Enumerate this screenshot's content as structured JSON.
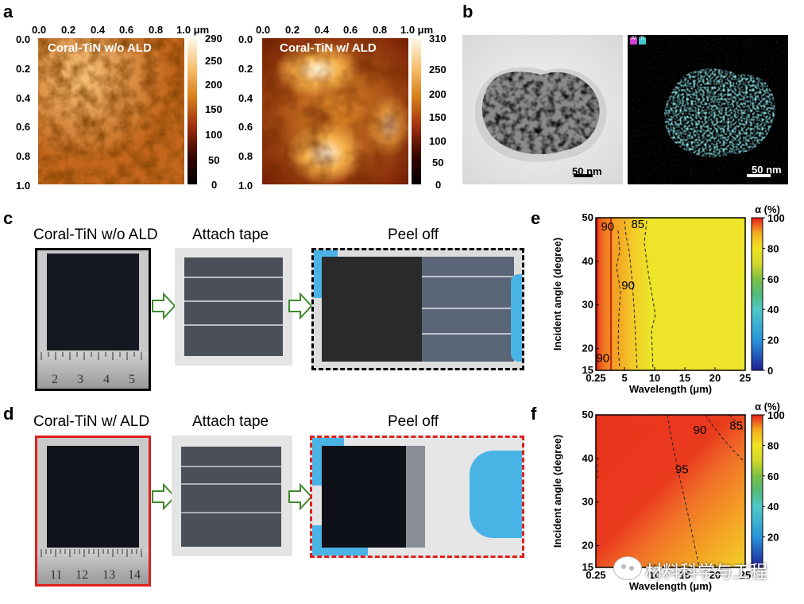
{
  "panels": {
    "a": {
      "label": "a",
      "left": {
        "title": "Coral-TiN w/o ALD",
        "x_ticks": [
          "0.0",
          "0.2",
          "0.4",
          "0.6",
          "0.8",
          "1.0 μm"
        ],
        "y_ticks": [
          "0.0",
          "0.2",
          "0.4",
          "0.6",
          "0.8",
          "1.0"
        ],
        "cbar_ticks": [
          "290",
          "250",
          "200",
          "150",
          "100",
          "50",
          "0"
        ]
      },
      "right": {
        "title": "Coral-TiN w/ ALD",
        "x_ticks": [
          "0.0",
          "0.2",
          "0.4",
          "0.6",
          "0.8",
          "1.0 μm"
        ],
        "y_ticks": [
          "0.0",
          "0.2",
          "0.4",
          "0.6",
          "0.8",
          "1.0"
        ],
        "cbar_ticks": [
          "310",
          "250",
          "200",
          "150",
          "100",
          "50",
          "0"
        ]
      }
    },
    "b": {
      "label": "b",
      "tem_scale": "50 nm",
      "eds_scale": "50 nm",
      "eds_legend": [
        "Al",
        "Ti"
      ],
      "eds_colors": {
        "Al": "#d040d0",
        "Ti": "#40c8d0"
      }
    },
    "c": {
      "label": "c",
      "titles": [
        "Coral-TiN w/o ALD",
        "Attach tape",
        "Peel off"
      ],
      "ruler_numbers": [
        "2",
        "3",
        "4",
        "5"
      ],
      "frame_color": "#000000"
    },
    "d": {
      "label": "d",
      "titles": [
        "Coral-TiN w/ ALD",
        "Attach tape",
        "Peel off"
      ],
      "ruler_numbers": [
        "11",
        "12",
        "13",
        "14"
      ],
      "frame_color": "#e0201c"
    },
    "e": {
      "label": "e"
    },
    "f": {
      "label": "f"
    }
  },
  "chart_data": [
    {
      "panel": "e",
      "type": "heatmap",
      "xlabel": "Wavelength (μm)",
      "ylabel": "Incident angle (degree)",
      "x_ticks": [
        "0.25",
        "5",
        "10",
        "15",
        "20",
        "25"
      ],
      "x_values": [
        0.25,
        5,
        10,
        15,
        20,
        25
      ],
      "y_ticks": [
        "15",
        "20",
        "30",
        "40",
        "50"
      ],
      "y_values": [
        15,
        20,
        30,
        40,
        50
      ],
      "xlim": [
        0.25,
        25
      ],
      "ylim": [
        15,
        50
      ],
      "colorbar_title": "α (%)",
      "colorbar_ticks": [
        "100",
        "80",
        "60",
        "40",
        "20",
        "0"
      ],
      "colorbar_range": [
        0,
        100
      ],
      "contour_labels": [
        {
          "text": "90",
          "x": 2.2,
          "y": 48
        },
        {
          "text": "85",
          "x": 7.2,
          "y": 48.5
        },
        {
          "text": "90",
          "x": 5.6,
          "y": 34.5
        },
        {
          "text": "90",
          "x": 1.4,
          "y": 17.8
        }
      ],
      "regions": [
        {
          "x_range": [
            0.25,
            2.5
          ],
          "absorptance": 95
        },
        {
          "x_range": [
            2.5,
            6
          ],
          "absorptance": 90
        },
        {
          "x_range": [
            6,
            10
          ],
          "absorptance": 87
        },
        {
          "x_range": [
            10,
            25
          ],
          "absorptance": 84
        }
      ]
    },
    {
      "panel": "f",
      "type": "heatmap",
      "xlabel": "Wavelength (μm)",
      "ylabel": "Incident angle (degree)",
      "x_ticks": [
        "0.25",
        "5",
        "10",
        "15",
        "20",
        "25"
      ],
      "x_values": [
        0.25,
        5,
        10,
        15,
        20,
        25
      ],
      "y_ticks": [
        "15",
        "20",
        "30",
        "40",
        "50"
      ],
      "y_values": [
        15,
        20,
        30,
        40,
        50
      ],
      "xlim": [
        0.25,
        25
      ],
      "ylim": [
        15,
        50
      ],
      "colorbar_title": "α (%)",
      "colorbar_ticks": [
        "100",
        "80",
        "20"
      ],
      "colorbar_tick_values": [
        100,
        80,
        20
      ],
      "colorbar_extra_ticks": [
        "60",
        "40"
      ],
      "colorbar_range": [
        0,
        100
      ],
      "contour_labels": [
        {
          "text": "95",
          "x": 14.5,
          "y": 37.5
        },
        {
          "text": "90",
          "x": 17.5,
          "y": 46.5
        },
        {
          "text": "85",
          "x": 23.5,
          "y": 47.5
        }
      ]
    }
  ],
  "watermark": {
    "text": "材料科学与工程"
  }
}
